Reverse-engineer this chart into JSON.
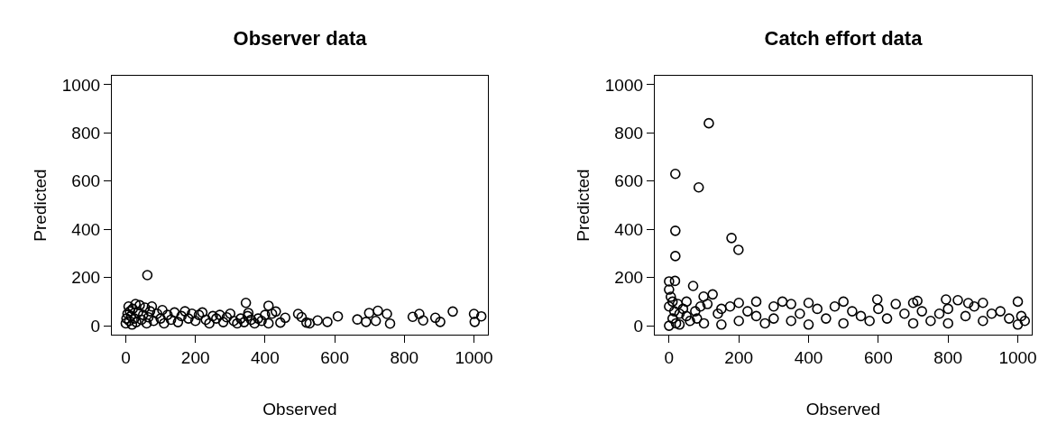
{
  "chart_data": [
    {
      "type": "scatter",
      "title": "Observer data",
      "xlabel": "Observed",
      "ylabel": "Predicted",
      "color": "#000000",
      "marker": "circle",
      "grid": false,
      "xlim": [
        -40,
        1040
      ],
      "ylim": [
        -37,
        1037
      ],
      "xticks": [
        0,
        200,
        400,
        600,
        800,
        1000
      ],
      "yticks": [
        0,
        200,
        400,
        600,
        800,
        1000
      ],
      "x": [
        0,
        2,
        5,
        8,
        10,
        12,
        15,
        18,
        20,
        25,
        28,
        30,
        35,
        40,
        45,
        50,
        55,
        60,
        62,
        65,
        70,
        75,
        80,
        90,
        100,
        105,
        110,
        120,
        130,
        140,
        150,
        160,
        170,
        180,
        190,
        200,
        210,
        220,
        230,
        240,
        250,
        260,
        270,
        280,
        290,
        300,
        310,
        320,
        330,
        340,
        345,
        350,
        352,
        360,
        370,
        380,
        390,
        400,
        410,
        410,
        420,
        431,
        444,
        458,
        495,
        505,
        519,
        528,
        551,
        579,
        609,
        665,
        690,
        699,
        718,
        724,
        750,
        759,
        824,
        843,
        854,
        889,
        903,
        939,
        1000,
        1002,
        1021
      ],
      "values": [
        10,
        30,
        50,
        80,
        20,
        60,
        40,
        5,
        70,
        30,
        90,
        15,
        55,
        85,
        25,
        45,
        75,
        10,
        210,
        35,
        60,
        80,
        20,
        50,
        30,
        65,
        10,
        45,
        25,
        55,
        15,
        40,
        60,
        30,
        50,
        20,
        45,
        55,
        25,
        10,
        40,
        30,
        45,
        15,
        35,
        50,
        20,
        10,
        30,
        15,
        95,
        40,
        53,
        25,
        10,
        30,
        20,
        45,
        10,
        83,
        50,
        59,
        13,
        33,
        49,
        36,
        13,
        10,
        22,
        16,
        39,
        26,
        16,
        53,
        20,
        62,
        49,
        9,
        37,
        49,
        22,
        33,
        16,
        59,
        49,
        16,
        39
      ]
    },
    {
      "type": "scatter",
      "title": "Catch effort data",
      "xlabel": "Observed",
      "ylabel": "Predicted",
      "color": "#000000",
      "marker": "circle",
      "grid": false,
      "xlim": [
        -41,
        1040
      ],
      "ylim": [
        -37,
        1037
      ],
      "xticks": [
        0,
        200,
        400,
        600,
        800,
        1000
      ],
      "yticks": [
        0,
        200,
        400,
        600,
        800,
        1000
      ],
      "x": [
        0,
        0,
        0,
        0,
        5,
        10,
        10,
        15,
        17,
        20,
        25,
        30,
        30,
        40,
        50,
        50,
        60,
        69,
        75,
        80,
        90,
        99,
        100,
        110,
        125,
        140,
        150,
        150,
        175,
        200,
        200,
        225,
        250,
        250,
        275,
        300,
        300,
        325,
        350,
        350,
        375,
        400,
        400,
        425,
        450,
        475,
        500,
        500,
        525,
        550,
        575,
        597,
        600,
        625,
        650,
        675,
        700,
        700,
        712,
        725,
        750,
        775,
        794,
        800,
        800,
        828,
        850,
        858,
        875,
        900,
        900,
        925,
        950,
        975,
        1000,
        1000,
        1010,
        1020,
        114,
        18,
        85,
        18,
        179,
        199,
        18
      ],
      "values": [
        184,
        150,
        80,
        0,
        120,
        100,
        30,
        60,
        186,
        10,
        90,
        50,
        5,
        70,
        40,
        100,
        20,
        165,
        60,
        30,
        80,
        121,
        10,
        90,
        130,
        50,
        70,
        5,
        80,
        95,
        20,
        60,
        40,
        100,
        10,
        80,
        30,
        100,
        20,
        90,
        50,
        95,
        5,
        70,
        30,
        80,
        100,
        10,
        60,
        40,
        20,
        109,
        70,
        30,
        90,
        50,
        95,
        10,
        103,
        60,
        20,
        50,
        109,
        70,
        10,
        106,
        40,
        94,
        80,
        95,
        20,
        50,
        60,
        30,
        100,
        5,
        40,
        20,
        840,
        630,
        574,
        394,
        364,
        315,
        289
      ]
    }
  ]
}
